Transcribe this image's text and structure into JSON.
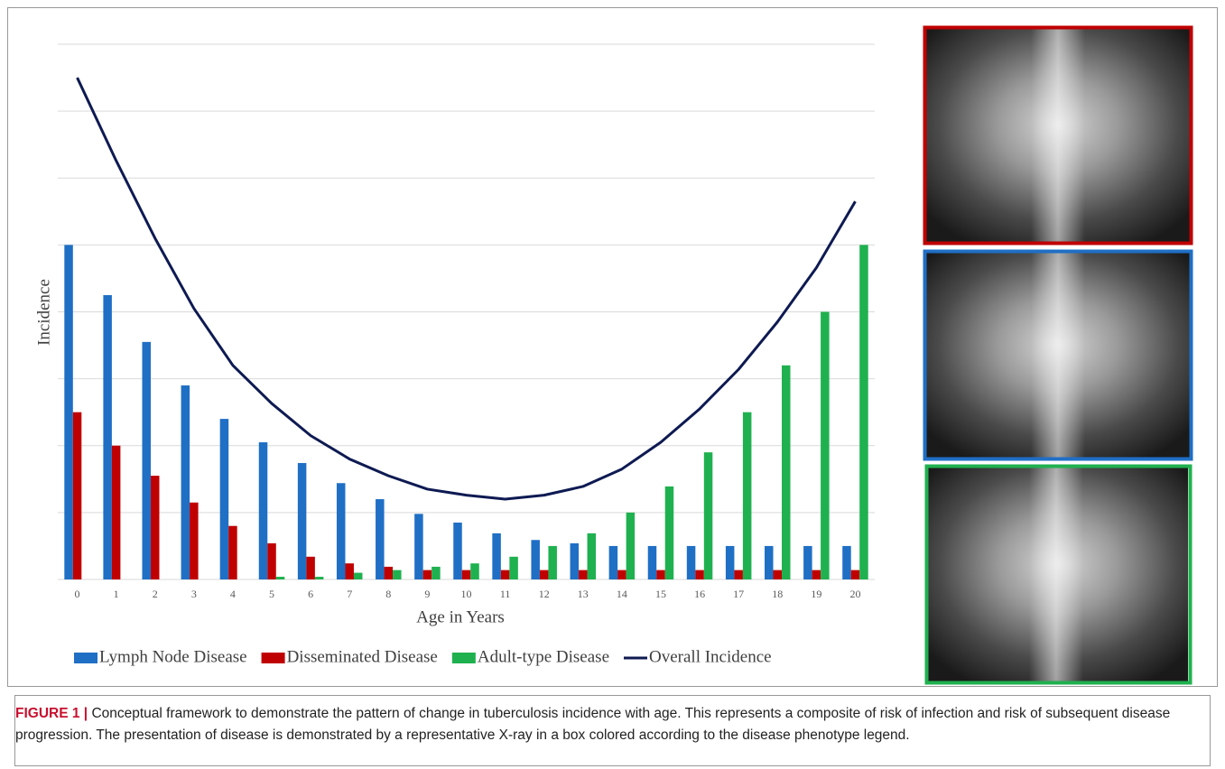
{
  "chart_data": {
    "type": "bar",
    "x_label": "Age in Years",
    "y_label": "Incidence",
    "categories": [
      0,
      1,
      2,
      3,
      4,
      5,
      6,
      7,
      8,
      9,
      10,
      11,
      12,
      13,
      14,
      15,
      16,
      17,
      18,
      19,
      20
    ],
    "series": [
      {
        "name": "Lymph Node Disease",
        "type": "bar",
        "color": "#1f6fc5",
        "values": [
          5.0,
          4.25,
          3.55,
          2.9,
          2.4,
          2.05,
          1.74,
          1.44,
          1.2,
          0.98,
          0.85,
          0.69,
          0.59,
          0.54,
          0.5,
          0.5,
          0.5,
          0.5,
          0.5,
          0.5,
          0.5
        ]
      },
      {
        "name": "Disseminated Disease",
        "type": "bar",
        "color": "#c00000",
        "values": [
          2.5,
          2.0,
          1.55,
          1.15,
          0.8,
          0.54,
          0.34,
          0.24,
          0.19,
          0.14,
          0.14,
          0.14,
          0.14,
          0.14,
          0.14,
          0.14,
          0.14,
          0.14,
          0.14,
          0.14,
          0.14
        ]
      },
      {
        "name": "Adult-type Disease",
        "type": "bar",
        "color": "#1fb14f",
        "values": [
          0,
          0,
          0,
          0,
          0,
          0.04,
          0.04,
          0.1,
          0.14,
          0.19,
          0.24,
          0.34,
          0.5,
          0.69,
          1.0,
          1.39,
          1.9,
          2.5,
          3.2,
          4.0,
          5.0
        ]
      },
      {
        "name": "Overall Incidence",
        "type": "line",
        "color": "#0e1a52",
        "values": [
          7.5,
          6.26,
          5.1,
          4.05,
          3.2,
          2.63,
          2.15,
          1.8,
          1.55,
          1.35,
          1.26,
          1.2,
          1.26,
          1.39,
          1.65,
          2.05,
          2.55,
          3.14,
          3.85,
          4.66,
          5.65
        ]
      }
    ],
    "ylim": [
      0,
      8
    ],
    "yticks": [
      0,
      1,
      2,
      3,
      4,
      5,
      6,
      7,
      8
    ],
    "grid": true,
    "legend": "bottom"
  },
  "caption": {
    "label": "FIGURE 1 |",
    "text": "Conceptual framework to demonstrate the pattern of change in tuberculosis incidence with age. This represents a composite of risk of infection and risk of subsequent disease progression. The presentation of disease is demonstrated by a representative X-ray in a box colored according to the disease phenotype legend."
  }
}
